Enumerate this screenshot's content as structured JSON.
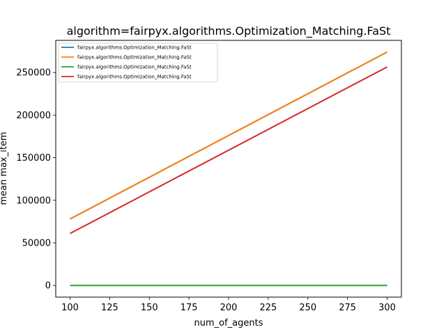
{
  "chart_data": {
    "type": "line",
    "title": "algorithm=fairpyx.algorithms.Optimization_Matching.FaSt",
    "xlabel": "num_of_agents",
    "ylabel": "mean max_item",
    "xlim": [
      91,
      309
    ],
    "ylim": [
      -13700,
      287700
    ],
    "xticks": [
      100,
      125,
      150,
      175,
      200,
      225,
      250,
      275,
      300
    ],
    "yticks": [
      0,
      50000,
      100000,
      150000,
      200000,
      250000
    ],
    "grid": false,
    "legend_position": "top-left",
    "series": [
      {
        "name": "fairpyx.algorithms.Optimization_Matching.FaSt",
        "color": "#1f77b4",
        "x": [
          100,
          300
        ],
        "y": [
          78000,
          274000
        ]
      },
      {
        "name": "fairpyx.algorithms.Optimization_Matching.FaSt",
        "color": "#ff7f0e",
        "x": [
          100,
          300
        ],
        "y": [
          78000,
          274000
        ]
      },
      {
        "name": "fairpyx.algorithms.Optimization_Matching.FaSt",
        "color": "#2ca02c",
        "x": [
          100,
          300
        ],
        "y": [
          0,
          0
        ]
      },
      {
        "name": "fairpyx.algorithms.Optimization_Matching.FaSt",
        "color": "#d62728",
        "x": [
          100,
          300
        ],
        "y": [
          61000,
          256500
        ]
      }
    ]
  }
}
